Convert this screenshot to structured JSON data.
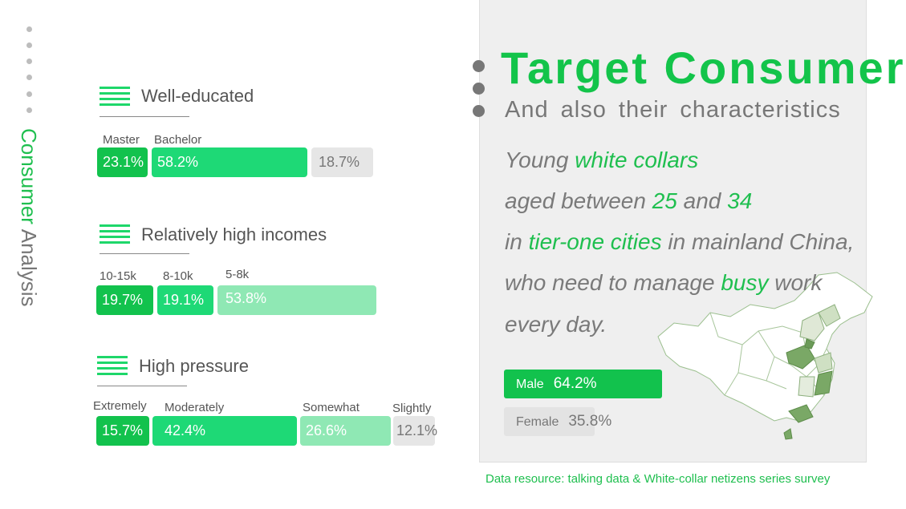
{
  "side_title": {
    "part1": "Consumer",
    "part2": " Analysis"
  },
  "sections": [
    {
      "title": "Well-educated",
      "labels": [
        "Master",
        "Bachelor",
        ""
      ],
      "values": [
        "23.1%",
        "58.2%",
        "18.7%"
      ]
    },
    {
      "title": "Relatively high incomes",
      "labels": [
        "10-15k",
        "8-10k",
        "5-8k"
      ],
      "values": [
        "19.7%",
        "19.1%",
        "53.8%"
      ]
    },
    {
      "title": "High pressure",
      "labels": [
        "Extremely",
        "Moderately",
        "Somewhat",
        "Slightly"
      ],
      "values": [
        "15.7%",
        "42.4%",
        "26.6%",
        "12.1%"
      ]
    }
  ],
  "headline": {
    "title": "Target  Consumer",
    "subtitle": "And also their characteristics"
  },
  "description": {
    "l1a": "Young ",
    "l1b": "white collars",
    "l2a": "aged between ",
    "l2b": "25",
    "l2c": " and ",
    "l2d": "34",
    "l3a": "in ",
    "l3b": "tier-one cities",
    "l3c": " in mainland China,",
    "l4a": "who need to manage ",
    "l4b": "busy",
    "l4c": " work",
    "l5": "every day."
  },
  "gender": {
    "male_label": "Male",
    "male_value": "64.2%",
    "female_label": "Female",
    "female_value": "35.8%"
  },
  "footer": "Data resource: talking data & White-collar netizens series survey",
  "colors": {
    "accent": "#13c44a",
    "bar_dark": "#12c24d",
    "bar_mid": "#1ed976",
    "bar_light": "#8fe8b4",
    "bar_gray": "#e6e6e6"
  },
  "chart_data": [
    {
      "type": "bar",
      "title": "Well-educated",
      "categories": [
        "Master",
        "Bachelor",
        ""
      ],
      "values": [
        23.1,
        58.2,
        18.7
      ],
      "unit": "%"
    },
    {
      "type": "bar",
      "title": "Relatively high incomes",
      "categories": [
        "10-15k",
        "8-10k",
        "5-8k"
      ],
      "values": [
        19.7,
        19.1,
        53.8
      ],
      "unit": "%"
    },
    {
      "type": "bar",
      "title": "High pressure",
      "categories": [
        "Extremely",
        "Moderately",
        "Somewhat",
        "Slightly"
      ],
      "values": [
        15.7,
        42.4,
        26.6,
        12.1
      ],
      "unit": "%"
    },
    {
      "type": "bar",
      "title": "",
      "categories": [
        "Male",
        "Female"
      ],
      "values": [
        64.2,
        35.8
      ],
      "unit": "%"
    }
  ]
}
